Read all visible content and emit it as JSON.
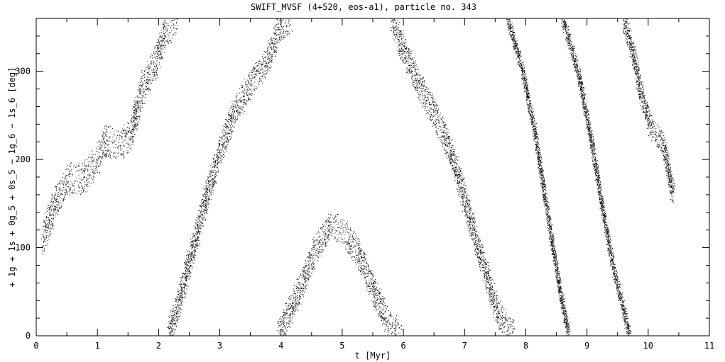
{
  "chart_data": {
    "type": "scatter",
    "title": "SWIFT_MVSF (4+520, eos-a1), particle no. 343",
    "xlabel": "t [Myr]",
    "ylabel": "+ 1g + 1s + 0g_5 + 0s_5 − 1g_6 − 1s_6 [deg]",
    "xlim": [
      0,
      11
    ],
    "ylim": [
      0,
      360
    ],
    "x_ticks": [
      "0",
      "1",
      "2",
      "3",
      "4",
      "5",
      "6",
      "7",
      "8",
      "9",
      "10",
      "11"
    ],
    "y_ticks": [
      "0",
      "100",
      "200",
      "300"
    ],
    "grid": false,
    "color": "#000000",
    "series": [
      {
        "points": [
          [
            0.1,
            110
          ],
          [
            0.3,
            150
          ],
          [
            0.55,
            180
          ],
          [
            0.75,
            178
          ],
          [
            1.0,
            200
          ],
          [
            1.15,
            222
          ],
          [
            1.35,
            215
          ],
          [
            1.55,
            232
          ],
          [
            1.75,
            285
          ],
          [
            1.95,
            310
          ],
          [
            2.1,
            345
          ],
          [
            2.3,
            360
          ]
        ],
        "spread": 18
      },
      {
        "points": [
          [
            2.15,
            0
          ],
          [
            2.3,
            30
          ],
          [
            2.5,
            85
          ],
          [
            2.75,
            150
          ],
          [
            3.0,
            210
          ],
          [
            3.25,
            255
          ],
          [
            3.5,
            285
          ],
          [
            3.75,
            310
          ],
          [
            3.95,
            345
          ],
          [
            4.15,
            360
          ]
        ],
        "spread": 16
      },
      {
        "points": [
          [
            3.95,
            0
          ],
          [
            4.25,
            45
          ],
          [
            4.55,
            95
          ],
          [
            4.8,
            125
          ],
          [
            5.0,
            120
          ],
          [
            5.25,
            95
          ],
          [
            5.5,
            55
          ],
          [
            5.75,
            15
          ],
          [
            5.95,
            0
          ]
        ],
        "spread": 16
      },
      {
        "points": [
          [
            5.8,
            360
          ],
          [
            6.0,
            325
          ],
          [
            6.25,
            285
          ],
          [
            6.5,
            252
          ],
          [
            6.7,
            222
          ],
          [
            6.9,
            180
          ],
          [
            7.1,
            128
          ],
          [
            7.35,
            70
          ],
          [
            7.55,
            25
          ],
          [
            7.8,
            0
          ]
        ],
        "spread": 16
      },
      {
        "points": [
          [
            7.7,
            360
          ],
          [
            7.95,
            300
          ],
          [
            8.15,
            230
          ],
          [
            8.35,
            140
          ],
          [
            8.55,
            55
          ],
          [
            8.7,
            0
          ]
        ],
        "spread": 7
      },
      {
        "points": [
          [
            8.6,
            360
          ],
          [
            8.85,
            300
          ],
          [
            9.05,
            230
          ],
          [
            9.25,
            145
          ],
          [
            9.45,
            70
          ],
          [
            9.7,
            0
          ]
        ],
        "spread": 7
      },
      {
        "points": [
          [
            9.6,
            360
          ],
          [
            9.75,
            320
          ],
          [
            9.9,
            270
          ],
          [
            10.05,
            235
          ],
          [
            10.25,
            218
          ],
          [
            10.4,
            160
          ]
        ],
        "spread": 12
      }
    ]
  }
}
